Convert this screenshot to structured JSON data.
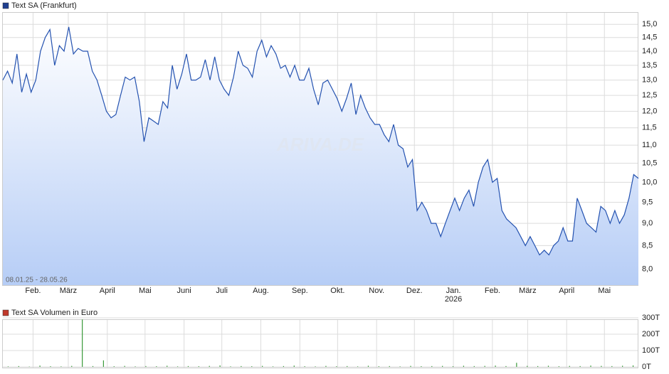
{
  "chart_data": [
    {
      "type": "area-line",
      "title": "Text SA (Frankfurt)",
      "period_label": "08.01.25 - 28.05.26",
      "watermark": "ARIVA.DE",
      "color": "#2452b0",
      "legend_color": "#1f3f8f",
      "log": true,
      "grid": true,
      "xlim": [
        "2025-01-08",
        "2026-05-28"
      ],
      "xticks": [
        {
          "value": "2025-02",
          "label": "Feb."
        },
        {
          "value": "2025-03",
          "label": "März"
        },
        {
          "value": "2025-04",
          "label": "April"
        },
        {
          "value": "2025-05",
          "label": "Mai"
        },
        {
          "value": "2025-06",
          "label": "Juni"
        },
        {
          "value": "2025-07",
          "label": "Juli"
        },
        {
          "value": "2025-08",
          "label": "Aug."
        },
        {
          "value": "2025-09",
          "label": "Sep."
        },
        {
          "value": "2025-10",
          "label": "Okt."
        },
        {
          "value": "2025-11",
          "label": "Nov."
        },
        {
          "value": "2025-12",
          "label": "Dez."
        },
        {
          "value": "2026-01",
          "label": "Jan.",
          "year": "2026"
        },
        {
          "value": "2026-02",
          "label": "Feb."
        },
        {
          "value": "2026-03",
          "label": "März"
        },
        {
          "value": "2026-04",
          "label": "April"
        },
        {
          "value": "2026-05",
          "label": "Mai"
        }
      ],
      "ylim": [
        7.68,
        15.45
      ],
      "yticks": [
        {
          "value": 8,
          "label": "8,0"
        },
        {
          "value": 8.5,
          "label": "8,5"
        },
        {
          "value": 9,
          "label": "9,0"
        },
        {
          "value": 9.5,
          "label": "9,5"
        },
        {
          "value": 10,
          "label": "10,0"
        },
        {
          "value": 10.5,
          "label": "10,5"
        },
        {
          "value": 11,
          "label": "11,0"
        },
        {
          "value": 11.5,
          "label": "11,5"
        },
        {
          "value": 12,
          "label": "12,0"
        },
        {
          "value": 12.5,
          "label": "12,5"
        },
        {
          "value": 13,
          "label": "13,0"
        },
        {
          "value": 13.5,
          "label": "13,5"
        },
        {
          "value": 14,
          "label": "14,0"
        },
        {
          "value": 14.5,
          "label": "14,5"
        },
        {
          "value": 15,
          "label": "15,0"
        }
      ],
      "values": [
        13.0,
        13.3,
        12.9,
        13.9,
        12.6,
        13.2,
        12.6,
        13.0,
        14.0,
        14.5,
        14.8,
        13.5,
        14.2,
        14.0,
        14.9,
        13.9,
        14.1,
        14.0,
        14.0,
        13.3,
        13.0,
        12.5,
        12.0,
        11.8,
        11.9,
        12.5,
        13.1,
        13.0,
        13.1,
        12.3,
        11.1,
        11.8,
        11.7,
        11.6,
        12.3,
        12.1,
        13.5,
        12.7,
        13.2,
        13.9,
        13.0,
        13.0,
        13.1,
        13.7,
        13.0,
        13.8,
        13.0,
        12.7,
        12.5,
        13.1,
        14.0,
        13.5,
        13.4,
        13.1,
        14.0,
        14.4,
        13.8,
        14.2,
        13.9,
        13.4,
        13.5,
        13.1,
        13.5,
        13.0,
        13.0,
        13.4,
        12.7,
        12.2,
        12.9,
        13.0,
        12.7,
        12.4,
        12.0,
        12.4,
        12.9,
        11.9,
        12.5,
        12.1,
        11.8,
        11.6,
        11.6,
        11.3,
        11.1,
        11.6,
        11.0,
        10.9,
        10.4,
        10.6,
        9.3,
        9.5,
        9.3,
        9.0,
        9.0,
        8.7,
        9.0,
        9.3,
        9.6,
        9.3,
        9.6,
        9.8,
        9.4,
        10.0,
        10.4,
        10.6,
        10.0,
        10.1,
        9.3,
        9.1,
        9.0,
        8.9,
        8.7,
        8.5,
        8.7,
        8.5,
        8.3,
        8.4,
        8.3,
        8.5,
        8.6,
        8.9,
        8.6,
        8.6,
        9.6,
        9.3,
        9.0,
        8.9,
        8.8,
        9.4,
        9.3,
        9.0,
        9.3,
        9.0,
        9.2,
        9.6,
        10.2,
        10.1
      ]
    },
    {
      "type": "bar",
      "title": "Text SA Volumen in Euro",
      "color": "#3a9a3a",
      "legend_color": "#c0392b",
      "grid": true,
      "ylim": [
        0,
        300000
      ],
      "yticks": [
        {
          "value": 0,
          "label": "0T"
        },
        {
          "value": 100000,
          "label": "100T"
        },
        {
          "value": 200000,
          "label": "200T"
        },
        {
          "value": 300000,
          "label": "300T"
        }
      ],
      "values": [
        3000,
        5000,
        2000,
        8000,
        4000,
        3000,
        6000,
        290000,
        5000,
        40000,
        4000,
        6000,
        3000,
        5000,
        4000,
        7000,
        3000,
        5000,
        4000,
        6000,
        9000,
        3000,
        5000,
        4000,
        6000,
        3000,
        5000,
        8000,
        4000,
        3000,
        6000,
        4000,
        5000,
        3000,
        7000,
        4000,
        5000,
        3000,
        6000,
        4000,
        5000,
        6000,
        4000,
        7000,
        5000,
        6000,
        8000,
        5000,
        25000,
        6000,
        5000,
        7000,
        4000,
        6000,
        5000,
        8000,
        6000,
        5000,
        7000,
        9000
      ]
    }
  ]
}
